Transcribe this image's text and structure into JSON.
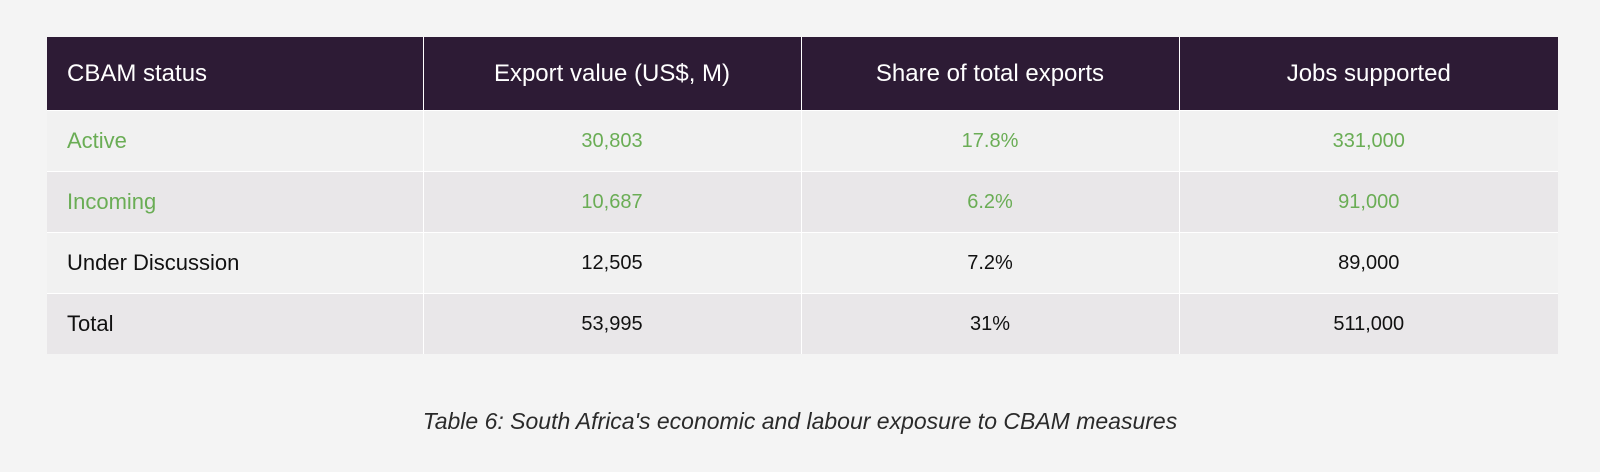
{
  "table": {
    "headers": [
      "CBAM status",
      "Export value (US$, M)",
      "Share of total exports",
      "Jobs supported"
    ],
    "rows": [
      {
        "status": "Active",
        "export_value": "30,803",
        "share": "17.8%",
        "jobs": "331,000"
      },
      {
        "status": "Incoming",
        "export_value": "10,687",
        "share": "6.2%",
        "jobs": "91,000"
      },
      {
        "status": "Under Discussion",
        "export_value": "12,505",
        "share": "7.2%",
        "jobs": "89,000"
      },
      {
        "status": "Total",
        "export_value": "53,995",
        "share": "31%",
        "jobs": "511,000"
      }
    ]
  },
  "caption": "Table 6: South Africa's economic and labour exposure to CBAM measures",
  "colors": {
    "header_bg": "#2d1b35",
    "highlight_green": "#6aad55"
  }
}
